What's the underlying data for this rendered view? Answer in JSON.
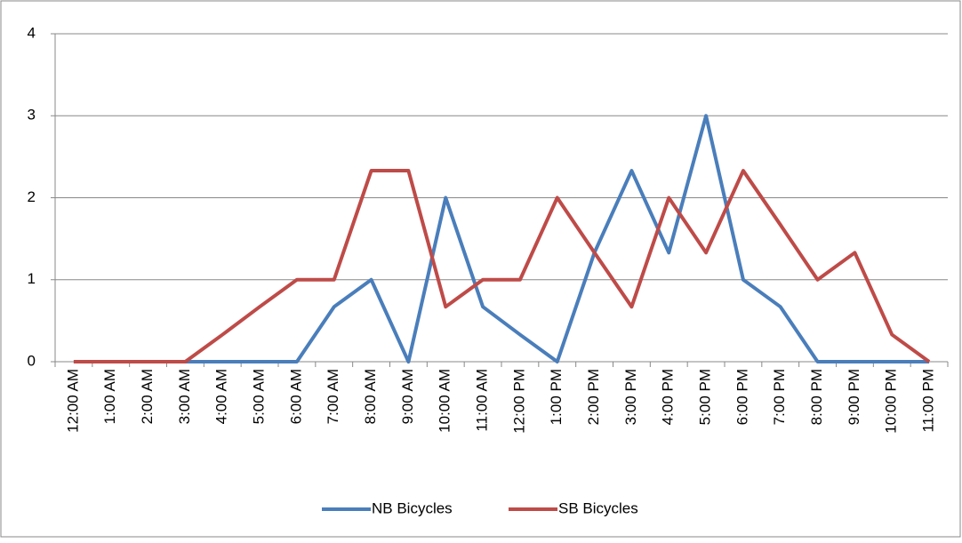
{
  "chart_data": {
    "type": "line",
    "categories": [
      "12:00 AM",
      "1:00 AM",
      "2:00 AM",
      "3:00 AM",
      "4:00 AM",
      "5:00 AM",
      "6:00 AM",
      "7:00 AM",
      "8:00 AM",
      "9:00 AM",
      "10:00 AM",
      "11:00 AM",
      "12:00 PM",
      "1:00 PM",
      "2:00 PM",
      "3:00 PM",
      "4:00 PM",
      "5:00 PM",
      "6:00 PM",
      "7:00 PM",
      "8:00 PM",
      "9:00 PM",
      "10:00 PM",
      "11:00 PM"
    ],
    "series": [
      {
        "name": "NB Bicycles",
        "color": "#4a7ebb",
        "values": [
          0,
          0,
          0,
          0,
          0,
          0,
          0,
          0.67,
          1,
          0,
          2,
          0.67,
          0.33,
          0,
          1.33,
          2.33,
          1.33,
          3,
          1,
          0.67,
          0,
          0,
          0,
          0
        ]
      },
      {
        "name": "SB Bicycles",
        "color": "#be4b48",
        "values": [
          0,
          0,
          0,
          0,
          0.33,
          0.67,
          1,
          1,
          2.33,
          2.33,
          0.67,
          1,
          1,
          2,
          1.33,
          0.67,
          2,
          1.33,
          2.33,
          1.67,
          1,
          1.33,
          0.33,
          0
        ]
      }
    ],
    "ylim": [
      0,
      4
    ],
    "yticks": [
      0,
      1,
      2,
      3,
      4
    ],
    "grid": true,
    "legend": "bottom"
  }
}
